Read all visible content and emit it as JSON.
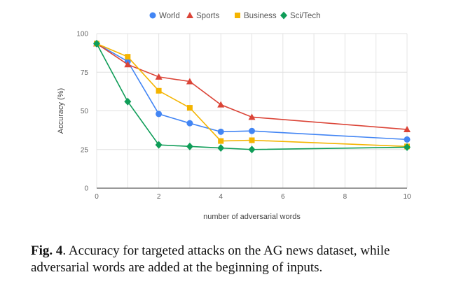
{
  "chart_data": {
    "type": "line",
    "xlabel": "number of adversarial words",
    "ylabel": "Accuracy (%)",
    "xlim": [
      0,
      10
    ],
    "ylim": [
      0,
      100
    ],
    "xticks": [
      "0",
      "2",
      "4",
      "6",
      "8",
      "10"
    ],
    "yticks": [
      "0",
      "25",
      "50",
      "75",
      "100"
    ],
    "grid": true,
    "legend_position": "top",
    "series": [
      {
        "name": "World",
        "color": "#4285f4",
        "marker": "circle",
        "x": [
          0,
          1,
          2,
          3,
          4,
          5,
          10
        ],
        "y": [
          93.5,
          82,
          48,
          42,
          36.5,
          37,
          31.5
        ]
      },
      {
        "name": "Sports",
        "color": "#db4437",
        "marker": "triangle",
        "x": [
          0,
          1,
          2,
          3,
          4,
          5,
          10
        ],
        "y": [
          93.5,
          80,
          72,
          69,
          54,
          46,
          38
        ]
      },
      {
        "name": "Business",
        "color": "#f4b400",
        "marker": "square",
        "x": [
          0,
          1,
          2,
          3,
          4,
          5,
          10
        ],
        "y": [
          93.5,
          85,
          63,
          52,
          30.5,
          31,
          27
        ]
      },
      {
        "name": "Sci/Tech",
        "color": "#0f9d58",
        "marker": "diamond",
        "x": [
          0,
          1,
          2,
          3,
          4,
          5,
          10
        ],
        "y": [
          93.5,
          56,
          28,
          27,
          26,
          25,
          26.5
        ]
      }
    ]
  },
  "caption": {
    "label": "Fig. 4",
    "text": ". Accuracy for targeted attacks on the AG news dataset, while adversarial words are added at the beginning of inputs."
  }
}
